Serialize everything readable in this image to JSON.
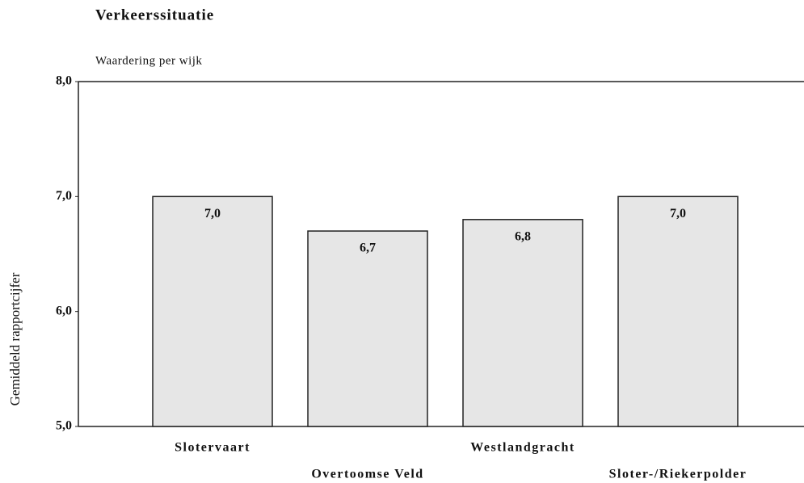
{
  "chart_data": {
    "type": "bar",
    "title": "Verkeerssituatie",
    "subtitle": "Waardering per wijk",
    "y_label": "Gemiddeld rapportcijfer",
    "categories": [
      "Slotervaart",
      "Overtoomse Veld",
      "Westlandgracht",
      "Sloter-/Riekerpolder"
    ],
    "values": [
      7.0,
      6.7,
      6.8,
      7.0
    ],
    "value_labels": [
      "7,0",
      "6,7",
      "6,8",
      "7,0"
    ],
    "color": "#e6e6e6",
    "ylim": [
      5,
      8
    ],
    "yticks": [
      {
        "value": 5,
        "label": "5,0"
      },
      {
        "value": 6,
        "label": "6,0"
      },
      {
        "value": 7,
        "label": "7,0"
      },
      {
        "value": 8,
        "label": "8,0"
      }
    ],
    "grid": false
  }
}
